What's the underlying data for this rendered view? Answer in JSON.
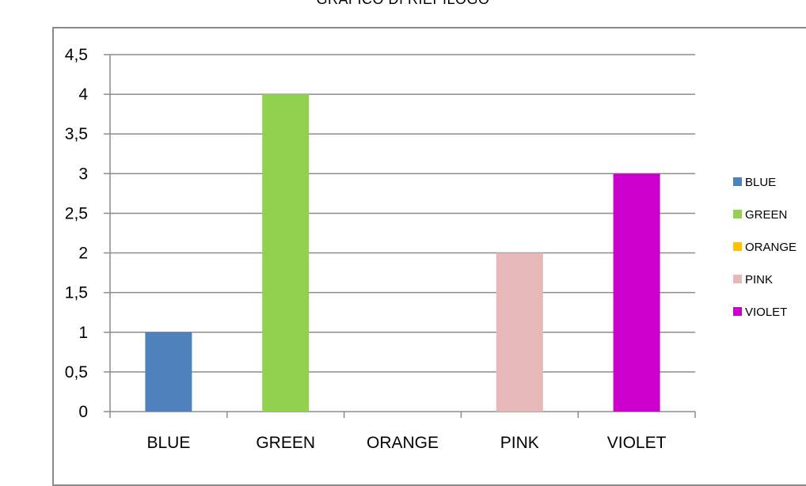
{
  "chart_data": {
    "type": "bar",
    "title": "GRAFICO DI RIEPILOGO",
    "categories": [
      "BLUE",
      "GREEN",
      "ORANGE",
      "PINK",
      "VIOLET"
    ],
    "values": [
      1,
      4,
      0,
      2,
      3
    ],
    "colors": [
      "#4f81bd",
      "#92d050",
      "#ffc000",
      "#e6b9b8",
      "#cc00cc"
    ],
    "ylim": [
      0,
      4.5
    ],
    "yticks": [
      "0",
      "0,5",
      "1",
      "1,5",
      "2",
      "2,5",
      "3",
      "3,5",
      "4",
      "4,5"
    ],
    "grid": true,
    "legend_position": "right",
    "legend": [
      "BLUE",
      "GREEN",
      "ORANGE",
      "PINK",
      "VIOLET"
    ]
  }
}
